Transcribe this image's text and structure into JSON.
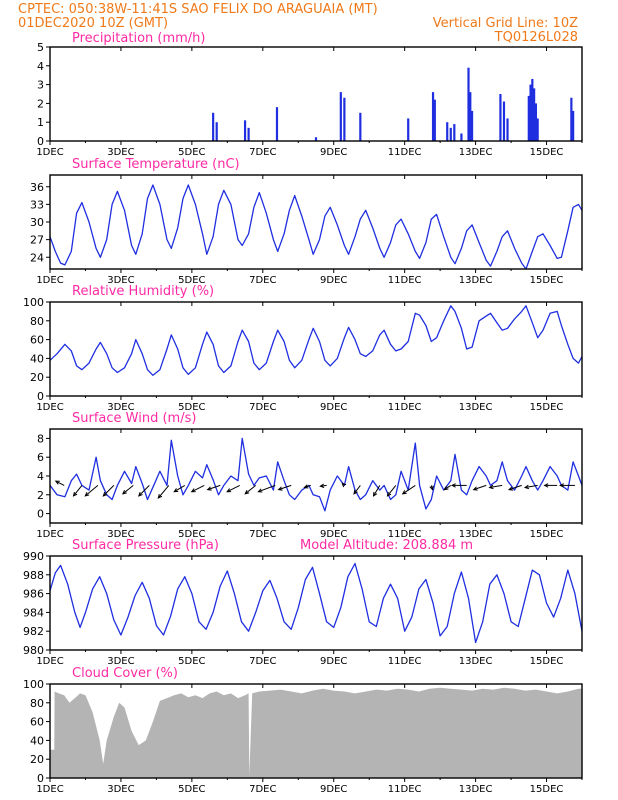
{
  "header": {
    "line1": "CPTEC:   050:38W-11:41S   SAO FELIX DO ARAGUAIA (MT)",
    "line2_left": "01DEC2020  10Z  (GMT)",
    "line2_right": "Vertical Grid Line: 10Z",
    "line3_right": "TQ0126L028",
    "model_altitude": "Model Altitude: 208.884  m"
  },
  "colors": {
    "header": "#f07a1a",
    "titles": "#ff2aa4",
    "series": "#1f2fe0",
    "cloud": "#b4b4b4",
    "arrows": "#000000"
  },
  "chart_data": [
    {
      "type": "bar",
      "title": "Precipitation  (mm/h)",
      "ylim": [
        0,
        5
      ],
      "yticks": [
        "0",
        "1",
        "2",
        "3",
        "4",
        "5"
      ],
      "xticks": [
        "1DEC",
        "3DEC",
        "5DEC",
        "7DEC",
        "9DEC",
        "11DEC",
        "13DEC",
        "15DEC"
      ],
      "x": [
        5.6,
        5.7,
        6.5,
        6.6,
        7.4,
        8.5,
        9.2,
        9.3,
        9.75,
        11.1,
        11.8,
        11.85,
        12.2,
        12.3,
        12.4,
        12.6,
        12.8,
        12.85,
        12.9,
        13.7,
        13.8,
        13.9,
        14.5,
        14.55,
        14.6,
        14.65,
        14.7,
        14.75,
        15.7,
        15.75
      ],
      "values": [
        1.5,
        1.0,
        1.1,
        0.7,
        1.8,
        0.2,
        2.6,
        2.3,
        1.5,
        1.2,
        2.6,
        2.2,
        1.0,
        0.7,
        0.9,
        0.4,
        3.9,
        2.6,
        1.6,
        2.5,
        2.1,
        1.2,
        2.4,
        3.0,
        3.3,
        2.8,
        2.0,
        1.2,
        2.3,
        1.6
      ]
    },
    {
      "type": "line",
      "title": "Surface Temperature  (nC)",
      "ylim": [
        22,
        38
      ],
      "yticks": [
        "24",
        "27",
        "30",
        "33",
        "36"
      ],
      "xticks": [
        "1DEC",
        "3DEC",
        "5DEC",
        "7DEC",
        "9DEC",
        "11DEC",
        "13DEC",
        "15DEC"
      ],
      "x": [
        1.0,
        1.15,
        1.3,
        1.42,
        1.6,
        1.75,
        1.9,
        2.1,
        2.3,
        2.42,
        2.6,
        2.75,
        2.9,
        3.1,
        3.3,
        3.42,
        3.6,
        3.75,
        3.9,
        4.1,
        4.3,
        4.42,
        4.6,
        4.75,
        4.9,
        5.1,
        5.3,
        5.42,
        5.6,
        5.75,
        5.9,
        6.1,
        6.3,
        6.42,
        6.6,
        6.75,
        6.9,
        7.1,
        7.3,
        7.42,
        7.6,
        7.75,
        7.9,
        8.1,
        8.3,
        8.42,
        8.6,
        8.75,
        8.9,
        9.1,
        9.3,
        9.42,
        9.6,
        9.75,
        9.9,
        10.1,
        10.3,
        10.42,
        10.6,
        10.75,
        10.9,
        11.1,
        11.3,
        11.42,
        11.6,
        11.75,
        11.9,
        12.1,
        12.3,
        12.42,
        12.6,
        12.75,
        12.9,
        13.1,
        13.3,
        13.42,
        13.6,
        13.75,
        13.9,
        14.1,
        14.3,
        14.42,
        14.6,
        14.75,
        14.9,
        15.1,
        15.3,
        15.42,
        15.6,
        15.75,
        15.9,
        16.0
      ],
      "values": [
        27.5,
        25.0,
        23.0,
        22.7,
        25.0,
        31.5,
        33.3,
        30.0,
        25.5,
        24.0,
        27.0,
        33.0,
        35.2,
        32.0,
        26.0,
        24.5,
        28.0,
        34.0,
        36.3,
        33.0,
        27.0,
        25.5,
        29.0,
        34.0,
        36.3,
        33.0,
        28.0,
        24.5,
        27.5,
        33.0,
        35.4,
        33.0,
        27.0,
        26.0,
        28.0,
        32.5,
        35.0,
        31.5,
        27.0,
        25.0,
        28.0,
        32.0,
        34.5,
        31.0,
        27.0,
        24.5,
        27.0,
        31.0,
        32.5,
        29.5,
        26.0,
        24.5,
        27.5,
        30.5,
        32.0,
        29.0,
        25.5,
        24.0,
        26.5,
        29.5,
        30.5,
        28.0,
        25.0,
        23.8,
        26.5,
        30.5,
        31.3,
        27.5,
        24.0,
        22.9,
        25.5,
        28.5,
        29.5,
        26.5,
        23.5,
        22.5,
        25.0,
        27.5,
        28.5,
        25.5,
        23.0,
        22.0,
        25.0,
        27.5,
        28.0,
        26.0,
        23.8,
        24.0,
        28.5,
        32.5,
        33.0,
        32.0
      ]
    },
    {
      "type": "line",
      "title": "Relative Humidity  (%)",
      "ylim": [
        0,
        100
      ],
      "yticks": [
        "0",
        "20",
        "40",
        "60",
        "80",
        "100"
      ],
      "xticks": [
        "1DEC",
        "3DEC",
        "5DEC",
        "7DEC",
        "9DEC",
        "11DEC",
        "13DEC",
        "15DEC"
      ],
      "x": [
        1.0,
        1.2,
        1.42,
        1.6,
        1.75,
        1.9,
        2.1,
        2.3,
        2.42,
        2.6,
        2.75,
        2.9,
        3.1,
        3.3,
        3.42,
        3.6,
        3.75,
        3.9,
        4.1,
        4.3,
        4.42,
        4.6,
        4.75,
        4.9,
        5.1,
        5.3,
        5.42,
        5.6,
        5.75,
        5.9,
        6.1,
        6.3,
        6.42,
        6.6,
        6.75,
        6.9,
        7.1,
        7.3,
        7.42,
        7.6,
        7.75,
        7.9,
        8.1,
        8.3,
        8.42,
        8.6,
        8.75,
        8.9,
        9.1,
        9.3,
        9.42,
        9.6,
        9.75,
        9.9,
        10.1,
        10.3,
        10.42,
        10.6,
        10.75,
        10.9,
        11.1,
        11.3,
        11.42,
        11.6,
        11.75,
        11.9,
        12.1,
        12.3,
        12.42,
        12.6,
        12.75,
        12.9,
        13.1,
        13.3,
        13.42,
        13.6,
        13.75,
        13.9,
        14.1,
        14.3,
        14.42,
        14.6,
        14.75,
        14.9,
        15.1,
        15.3,
        15.42,
        15.6,
        15.75,
        15.9,
        16.0
      ],
      "values": [
        38,
        45,
        55,
        48,
        32,
        28,
        35,
        50,
        57,
        45,
        30,
        25,
        30,
        45,
        60,
        45,
        28,
        22,
        28,
        50,
        65,
        50,
        30,
        23,
        30,
        55,
        68,
        55,
        32,
        25,
        32,
        58,
        70,
        58,
        35,
        28,
        35,
        58,
        70,
        58,
        38,
        30,
        38,
        60,
        72,
        58,
        38,
        32,
        40,
        62,
        73,
        60,
        45,
        42,
        48,
        65,
        70,
        55,
        48,
        50,
        58,
        88,
        86,
        75,
        58,
        62,
        80,
        96,
        90,
        72,
        50,
        52,
        80,
        85,
        88,
        78,
        70,
        72,
        82,
        90,
        96,
        78,
        62,
        70,
        88,
        90,
        75,
        55,
        40,
        35,
        42
      ]
    },
    {
      "type": "line",
      "title": "Surface Wind  (m/s)",
      "ylim": [
        -1,
        9
      ],
      "yticks": [
        "0",
        "2",
        "4",
        "6",
        "8"
      ],
      "xticks": [
        "1DEC",
        "3DEC",
        "5DEC",
        "7DEC",
        "9DEC",
        "11DEC",
        "13DEC",
        "15DEC"
      ],
      "x": [
        1.0,
        1.2,
        1.42,
        1.6,
        1.75,
        1.9,
        2.1,
        2.3,
        2.42,
        2.6,
        2.75,
        2.9,
        3.1,
        3.3,
        3.42,
        3.6,
        3.75,
        3.9,
        4.1,
        4.3,
        4.42,
        4.6,
        4.75,
        4.9,
        5.1,
        5.3,
        5.42,
        5.6,
        5.75,
        5.9,
        6.1,
        6.3,
        6.42,
        6.6,
        6.75,
        6.9,
        7.1,
        7.3,
        7.42,
        7.6,
        7.75,
        7.9,
        8.1,
        8.3,
        8.42,
        8.6,
        8.75,
        8.9,
        9.1,
        9.3,
        9.42,
        9.6,
        9.75,
        9.9,
        10.1,
        10.3,
        10.42,
        10.6,
        10.75,
        10.9,
        11.1,
        11.3,
        11.42,
        11.6,
        11.75,
        11.9,
        12.1,
        12.3,
        12.42,
        12.6,
        12.75,
        12.9,
        13.1,
        13.3,
        13.42,
        13.6,
        13.75,
        13.9,
        14.1,
        14.3,
        14.42,
        14.6,
        14.75,
        14.9,
        15.1,
        15.3,
        15.42,
        15.6,
        15.75,
        15.9,
        16.0
      ],
      "values": [
        3.0,
        2.0,
        1.8,
        3.5,
        4.2,
        3.0,
        2.5,
        6.0,
        3.5,
        2.0,
        1.5,
        3.0,
        4.5,
        3.2,
        5.0,
        3.2,
        1.5,
        2.8,
        4.5,
        3.0,
        7.8,
        4.0,
        2.0,
        3.0,
        4.5,
        3.8,
        5.2,
        3.6,
        2.0,
        3.0,
        4.0,
        3.5,
        8.0,
        4.2,
        3.0,
        3.8,
        4.0,
        2.5,
        5.5,
        3.5,
        2.0,
        1.5,
        2.5,
        3.0,
        2.0,
        1.8,
        0.3,
        2.5,
        4.0,
        3.0,
        5.0,
        2.5,
        1.5,
        2.0,
        3.5,
        2.5,
        3.0,
        1.5,
        2.0,
        4.5,
        2.5,
        7.5,
        3.0,
        0.5,
        1.5,
        4.0,
        2.5,
        3.5,
        6.3,
        2.5,
        2.0,
        3.5,
        5.0,
        4.0,
        3.0,
        3.5,
        5.5,
        3.5,
        2.5,
        4.0,
        5.0,
        3.5,
        2.5,
        3.5,
        5.0,
        4.0,
        3.0,
        2.5,
        5.5,
        4.0,
        3.0
      ]
    },
    {
      "type": "line",
      "title": "Surface Pressure  (hPa)",
      "ylim": [
        980,
        990
      ],
      "yticks": [
        "980",
        "982",
        "984",
        "986",
        "988",
        "990"
      ],
      "xticks": [
        "1DEC",
        "3DEC",
        "5DEC",
        "7DEC",
        "9DEC",
        "11DEC",
        "13DEC",
        "15DEC"
      ],
      "x": [
        1.0,
        1.15,
        1.3,
        1.5,
        1.7,
        1.85,
        2.0,
        2.2,
        2.4,
        2.6,
        2.8,
        3.0,
        3.2,
        3.4,
        3.6,
        3.8,
        4.0,
        4.2,
        4.4,
        4.6,
        4.8,
        5.0,
        5.2,
        5.4,
        5.6,
        5.8,
        6.0,
        6.2,
        6.4,
        6.6,
        6.8,
        7.0,
        7.2,
        7.4,
        7.6,
        7.8,
        8.0,
        8.2,
        8.4,
        8.6,
        8.8,
        9.0,
        9.2,
        9.4,
        9.6,
        9.8,
        10.0,
        10.2,
        10.4,
        10.6,
        10.8,
        11.0,
        11.2,
        11.4,
        11.6,
        11.8,
        12.0,
        12.2,
        12.4,
        12.6,
        12.8,
        13.0,
        13.2,
        13.4,
        13.6,
        13.8,
        14.0,
        14.2,
        14.4,
        14.6,
        14.8,
        15.0,
        15.2,
        15.4,
        15.6,
        15.8,
        16.0
      ],
      "values": [
        986.3,
        988.2,
        989.0,
        987.0,
        984.0,
        982.4,
        984.0,
        986.5,
        987.8,
        986.0,
        983.2,
        981.6,
        983.5,
        985.8,
        987.2,
        985.5,
        982.6,
        981.6,
        983.6,
        986.5,
        987.8,
        986.0,
        983.0,
        982.2,
        984.0,
        986.8,
        988.4,
        986.0,
        983.0,
        982.0,
        984.0,
        986.3,
        987.4,
        985.5,
        983.0,
        982.2,
        984.5,
        987.5,
        988.8,
        986.0,
        983.0,
        982.4,
        984.5,
        987.8,
        989.2,
        986.5,
        983.0,
        982.5,
        985.5,
        987.0,
        985.5,
        982.0,
        983.5,
        986.5,
        987.5,
        985.0,
        981.5,
        982.5,
        986.0,
        988.3,
        985.5,
        980.8,
        983.0,
        987.0,
        988.0,
        986.0,
        983.0,
        982.5,
        985.5,
        988.5,
        988.0,
        985.0,
        983.5,
        985.5,
        988.5,
        986.0,
        982.0
      ]
    },
    {
      "type": "area",
      "title": "Cloud Cover  (%)",
      "ylim": [
        0,
        100
      ],
      "yticks": [
        "0",
        "20",
        "40",
        "60",
        "80",
        "100"
      ],
      "xticks": [
        "1DEC",
        "3DEC",
        "5DEC",
        "7DEC",
        "9DEC",
        "11DEC",
        "13DEC",
        "15DEC"
      ],
      "x": [
        1.0,
        1.12,
        1.13,
        1.25,
        1.4,
        1.55,
        1.7,
        1.85,
        2.0,
        2.2,
        2.4,
        2.5,
        2.6,
        2.8,
        2.95,
        3.1,
        3.3,
        3.5,
        3.7,
        3.9,
        4.1,
        4.3,
        4.5,
        4.7,
        4.9,
        5.1,
        5.3,
        5.5,
        5.7,
        5.9,
        6.1,
        6.3,
        6.5,
        6.6,
        6.62,
        6.7,
        6.9,
        7.2,
        7.5,
        7.8,
        8.1,
        8.4,
        8.7,
        9.0,
        9.3,
        9.6,
        9.9,
        10.2,
        10.5,
        10.8,
        11.1,
        11.4,
        11.7,
        12.0,
        12.3,
        12.6,
        12.9,
        13.2,
        13.5,
        13.8,
        14.1,
        14.4,
        14.7,
        15.0,
        15.3,
        15.6,
        15.9,
        16.0
      ],
      "values": [
        30,
        30,
        92,
        90,
        88,
        80,
        85,
        90,
        88,
        70,
        40,
        15,
        40,
        65,
        80,
        75,
        50,
        35,
        40,
        60,
        82,
        85,
        88,
        90,
        86,
        88,
        85,
        90,
        92,
        88,
        90,
        85,
        88,
        90,
        2,
        90,
        92,
        93,
        94,
        92,
        90,
        93,
        95,
        93,
        92,
        90,
        92,
        94,
        93,
        95,
        94,
        92,
        95,
        96,
        95,
        94,
        93,
        95,
        94,
        96,
        95,
        93,
        94,
        92,
        90,
        92,
        95,
        95
      ]
    }
  ],
  "wind_vectors": {
    "x": [
      1.4,
      1.9,
      2.35,
      2.8,
      3.35,
      3.8,
      4.35,
      4.8,
      5.35,
      5.8,
      6.35,
      6.8,
      7.35,
      7.8,
      8.35,
      8.8,
      9.3,
      9.75,
      10.3,
      10.75,
      11.3,
      11.75,
      12.3,
      12.75,
      13.3,
      13.75,
      14.3,
      14.75,
      15.3,
      15.8
    ],
    "u": [
      -2.0,
      -2.0,
      -3.0,
      -2.5,
      -2.5,
      -2.5,
      -2.5,
      -2.5,
      -3.0,
      -3.0,
      -3.0,
      -2.5,
      -4.0,
      -3.0,
      -1.5,
      -1.5,
      -0.5,
      -1.5,
      -1.5,
      -2.0,
      -3.0,
      0.3,
      -1.5,
      -3.5,
      -3.0,
      -3.0,
      -3.0,
      -3.0,
      -3.0,
      -3.5
    ],
    "v": [
      1.0,
      -2.5,
      -2.5,
      -2.5,
      -2.0,
      -2.5,
      -3.0,
      -1.5,
      -1.5,
      -1.0,
      -1.5,
      -2.0,
      -1.5,
      -1.0,
      -0.5,
      -0.2,
      0.5,
      -2.0,
      -2.5,
      -2.5,
      -2.0,
      -1.0,
      -1.0,
      0.0,
      -1.0,
      -0.5,
      -1.0,
      -0.5,
      0.0,
      0.0
    ]
  }
}
